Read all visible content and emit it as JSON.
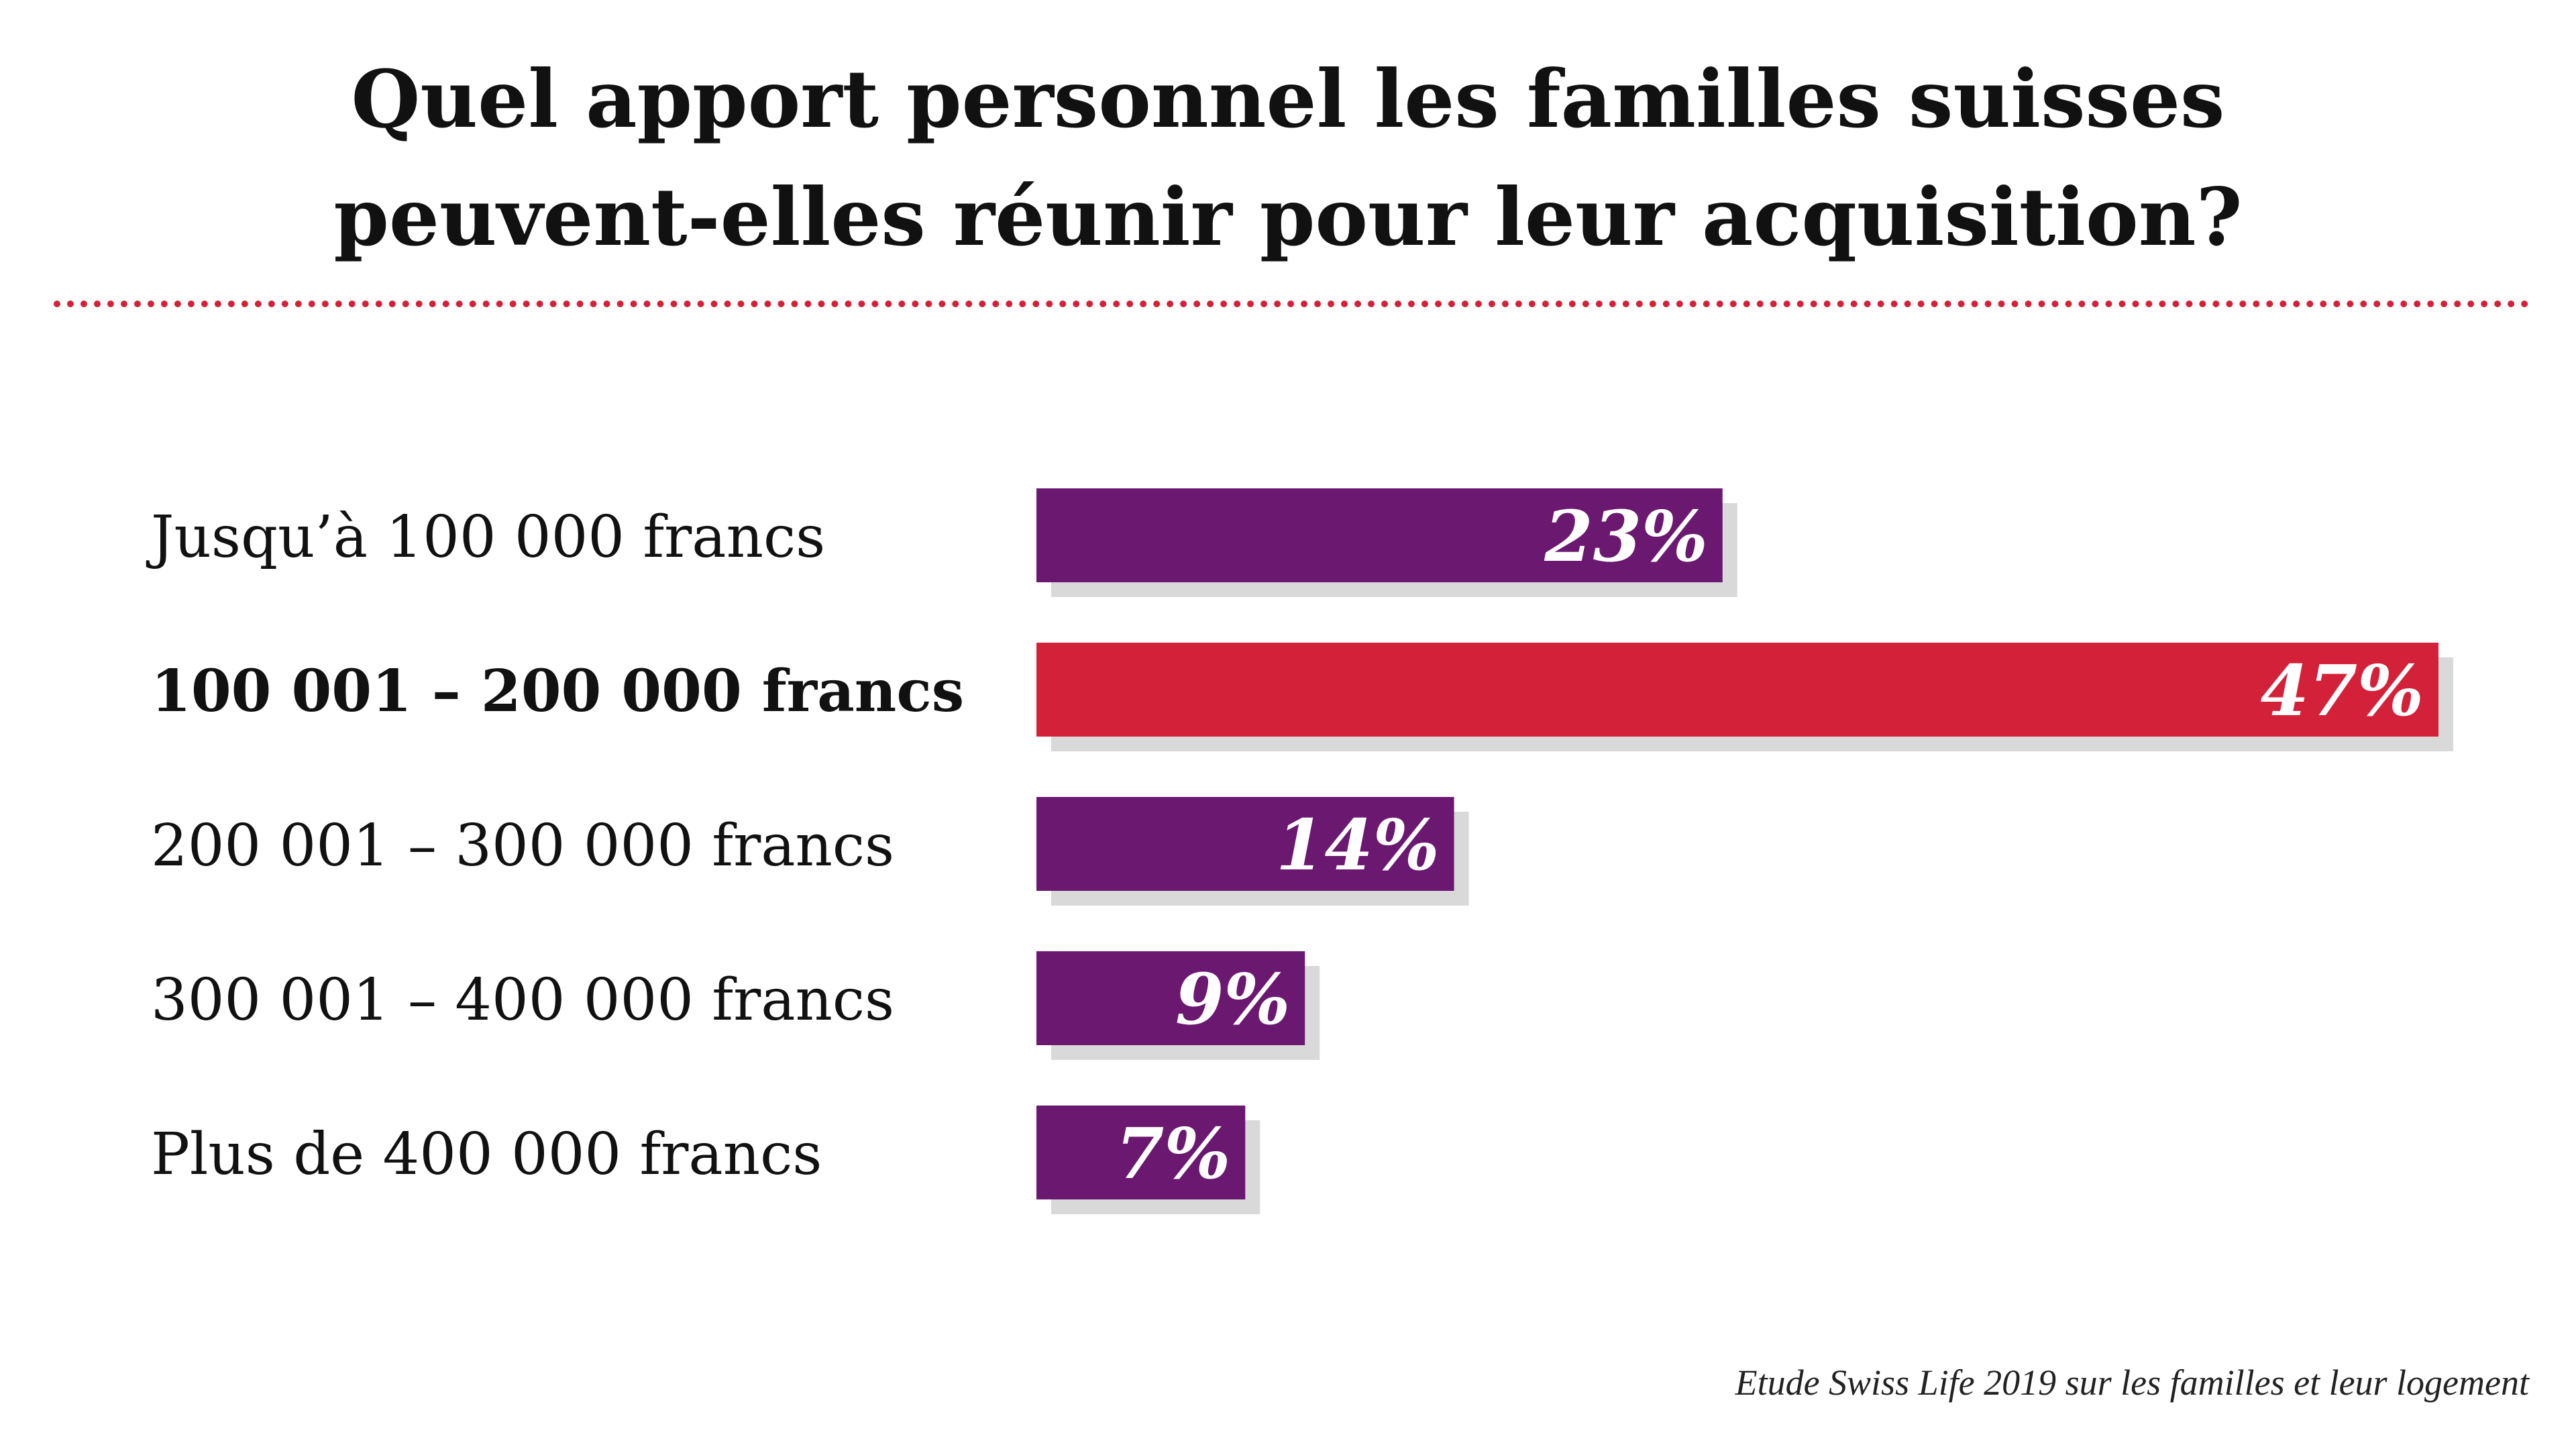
{
  "chart_data": {
    "type": "bar",
    "orientation": "horizontal",
    "title_lines": [
      "Quel apport personnel les familles suisses",
      "peuvent-elles réunir pour leur acquisition?"
    ],
    "categories": [
      "Jusqu’à 100 000 francs",
      "100 001 – 200 000 francs",
      "200 001 – 300 000 francs",
      "300 001 – 400 000 francs",
      "Plus de 400 000 francs"
    ],
    "values": [
      23,
      47,
      14,
      9,
      7
    ],
    "value_labels": [
      "23%",
      "47%",
      "14%",
      "9%",
      "7%"
    ],
    "highlight_index": 1,
    "colors": {
      "bar": "#6b1870",
      "highlight": "#d4213a",
      "shadow": "#d9d9d9",
      "divider": "#d4213a"
    },
    "grid": false,
    "legend": "none"
  },
  "source": "Etude Swiss Life 2019 sur les familles et leur logement"
}
